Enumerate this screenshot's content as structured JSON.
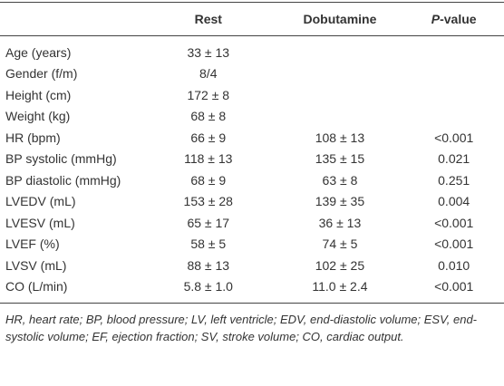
{
  "table": {
    "header": {
      "rest": "Rest",
      "dobutamine": "Dobutamine",
      "p_value": {
        "italic": "P",
        "text": "-value"
      }
    },
    "rows": [
      {
        "label": "Age (years)",
        "rest": "33 ± 13"
      },
      {
        "label": "Gender (f/m)",
        "rest": "8/4"
      },
      {
        "label": "Height (cm)",
        "rest": "172 ± 8"
      },
      {
        "label": "Weight (kg)",
        "rest": "68 ± 8"
      },
      {
        "label": "HR (bpm)",
        "rest": "66 ± 9",
        "dobutamine": "108 ± 13",
        "p": "<0.001"
      },
      {
        "label": "BP systolic (mmHg)",
        "rest": "118 ± 13",
        "dobutamine": "135 ± 15",
        "p": "0.021"
      },
      {
        "label": "BP diastolic (mmHg)",
        "rest": "68 ± 9",
        "dobutamine": "63 ± 8",
        "p": "0.251"
      },
      {
        "label": "LVEDV (mL)",
        "rest": "153 ± 28",
        "dobutamine": "139 ± 35",
        "p": "0.004"
      },
      {
        "label": "LVESV (mL)",
        "rest": "65 ± 17",
        "dobutamine": "36 ± 13",
        "p": "<0.001"
      },
      {
        "label": "LVEF (%)",
        "rest": "58 ± 5",
        "dobutamine": "74 ± 5",
        "p": "<0.001"
      },
      {
        "label": "LVSV (mL)",
        "rest": "88 ± 13",
        "dobutamine": "102 ± 25",
        "p": "0.010"
      },
      {
        "label": "CO (L/min)",
        "rest": "5.8 ± 1.0",
        "dobutamine": "11.0 ± 2.4",
        "p": "<0.001"
      }
    ]
  },
  "footnote": "HR, heart rate; BP, blood pressure; LV, left ventricle; EDV, end-diastolic volume; ESV, end-systolic volume; EF, ejection fraction; SV, stroke volume; CO, cardiac output."
}
